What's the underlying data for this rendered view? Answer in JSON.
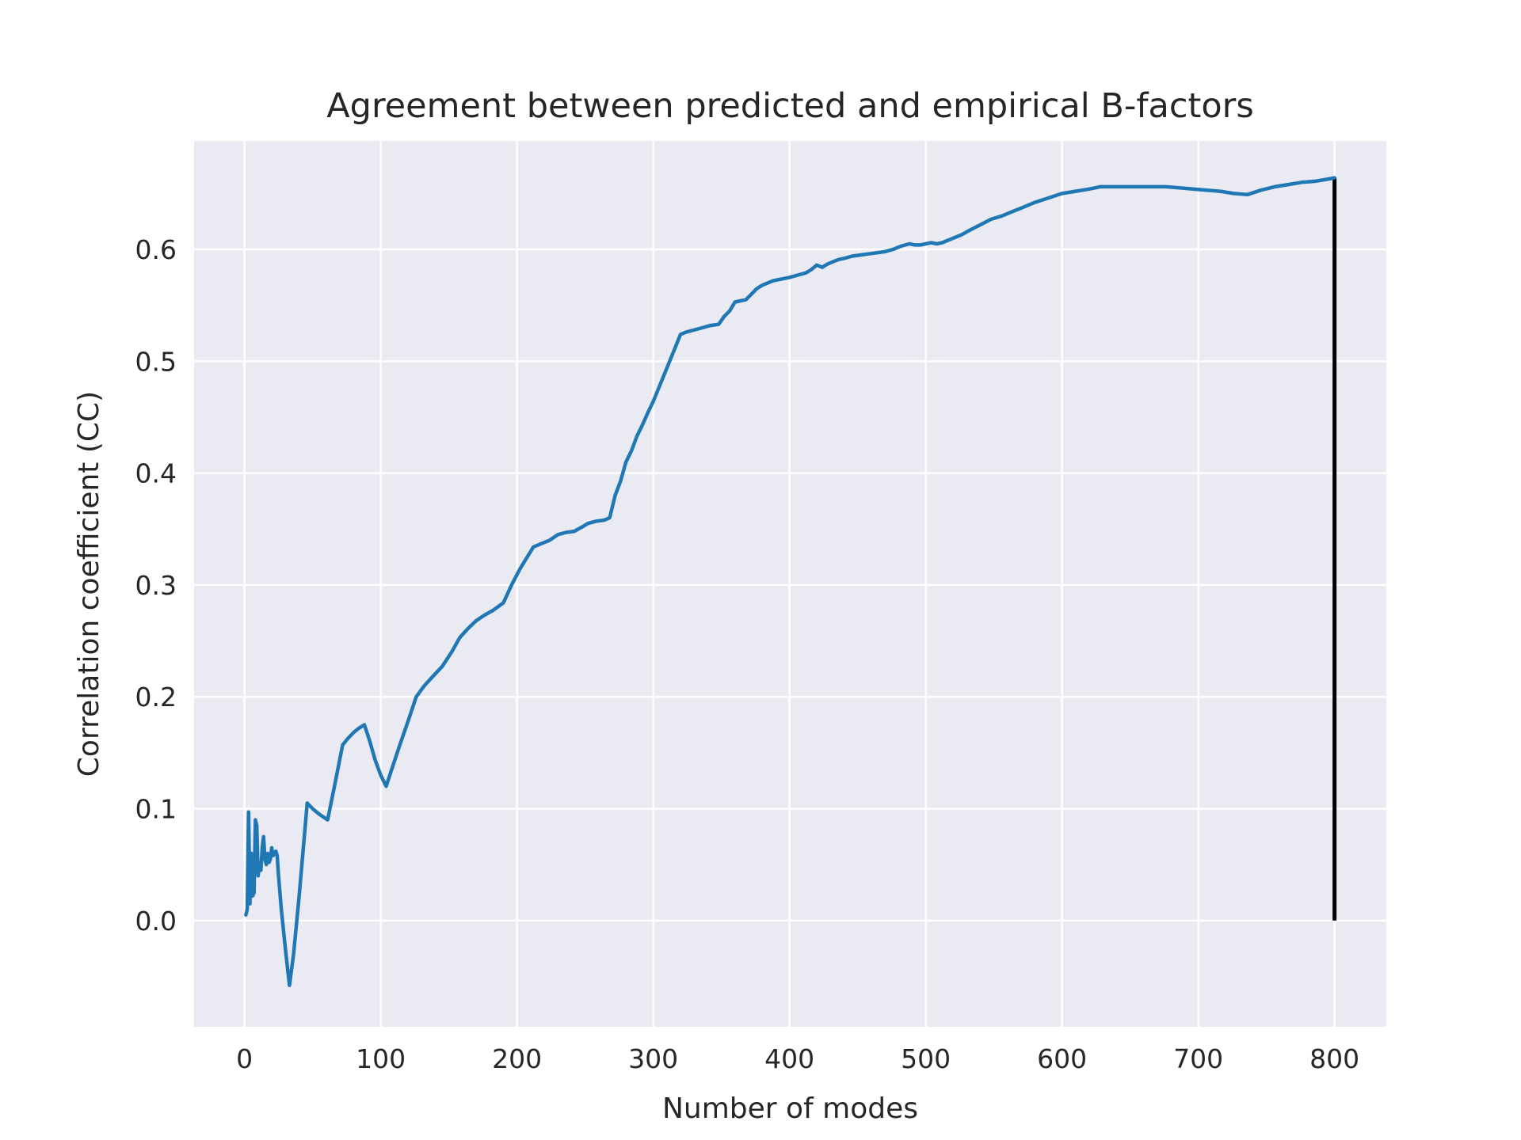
{
  "chart_data": {
    "type": "line",
    "title": "Agreement between predicted and empirical B-factors",
    "xlabel": "Number of modes",
    "ylabel": "Correlation coefficient (CC)",
    "xlim": [
      -37,
      838
    ],
    "ylim": [
      -0.095,
      0.697
    ],
    "xticks": [
      0,
      100,
      200,
      300,
      400,
      500,
      600,
      700,
      800
    ],
    "xtick_labels": [
      "0",
      "100",
      "200",
      "300",
      "400",
      "500",
      "600",
      "700",
      "800"
    ],
    "yticks": [
      0.0,
      0.1,
      0.2,
      0.3,
      0.4,
      0.5,
      0.6
    ],
    "ytick_labels": [
      "0.0",
      "0.1",
      "0.2",
      "0.3",
      "0.4",
      "0.5",
      "0.6"
    ],
    "grid": true,
    "colors": {
      "background": "#eaeaf2",
      "series": "#1f77b4",
      "marker": "#000000",
      "grid": "#ffffff"
    },
    "series": [
      {
        "x": [
          1,
          2,
          3,
          4,
          5,
          6,
          7,
          8,
          9,
          10,
          11,
          12,
          13,
          14,
          15,
          16,
          17,
          18,
          19,
          20,
          21,
          22,
          23,
          24,
          25,
          27,
          30,
          33,
          36,
          40,
          46,
          50,
          55,
          61,
          66,
          72,
          76,
          80,
          84,
          88,
          92,
          96,
          100,
          104,
          108,
          114,
          120,
          126,
          132,
          138,
          145,
          152,
          158,
          164,
          170,
          176,
          182,
          190,
          196,
          202,
          208,
          212,
          218,
          224,
          230,
          236,
          242,
          248,
          252,
          258,
          264,
          268,
          272,
          276,
          280,
          284,
          288,
          292,
          296,
          300,
          304,
          308,
          312,
          316,
          320,
          324,
          330,
          336,
          342,
          348,
          352,
          356,
          360,
          364,
          368,
          372,
          376,
          380,
          384,
          388,
          392,
          396,
          400,
          406,
          412,
          416,
          420,
          424,
          428,
          432,
          436,
          440,
          446,
          452,
          458,
          464,
          470,
          476,
          482,
          488,
          492,
          496,
          500,
          504,
          508,
          512,
          516,
          520,
          526,
          532,
          540,
          548,
          556,
          564,
          572,
          580,
          590,
          600,
          610,
          620,
          628,
          636,
          646,
          656,
          666,
          676,
          686,
          696,
          706,
          716,
          726,
          736,
          746,
          756,
          766,
          776,
          786,
          796,
          800
        ],
        "y": [
          0.005,
          0.01,
          0.097,
          0.015,
          0.06,
          0.022,
          0.025,
          0.09,
          0.085,
          0.04,
          0.05,
          0.045,
          0.065,
          0.075,
          0.055,
          0.05,
          0.06,
          0.052,
          0.055,
          0.065,
          0.058,
          0.06,
          0.062,
          0.058,
          0.04,
          0.01,
          -0.025,
          -0.058,
          -0.03,
          0.02,
          0.105,
          0.1,
          0.095,
          0.09,
          0.12,
          0.157,
          0.163,
          0.168,
          0.172,
          0.175,
          0.16,
          0.143,
          0.13,
          0.12,
          0.135,
          0.157,
          0.178,
          0.2,
          0.21,
          0.218,
          0.227,
          0.24,
          0.253,
          0.261,
          0.268,
          0.273,
          0.277,
          0.284,
          0.3,
          0.314,
          0.326,
          0.334,
          0.337,
          0.34,
          0.345,
          0.347,
          0.348,
          0.352,
          0.355,
          0.357,
          0.358,
          0.36,
          0.38,
          0.393,
          0.41,
          0.42,
          0.433,
          0.443,
          0.454,
          0.464,
          0.476,
          0.488,
          0.5,
          0.512,
          0.524,
          0.526,
          0.528,
          0.53,
          0.532,
          0.533,
          0.54,
          0.545,
          0.553,
          0.554,
          0.555,
          0.56,
          0.565,
          0.568,
          0.57,
          0.572,
          0.573,
          0.574,
          0.575,
          0.577,
          0.579,
          0.582,
          0.586,
          0.584,
          0.587,
          0.589,
          0.591,
          0.592,
          0.594,
          0.595,
          0.596,
          0.597,
          0.598,
          0.6,
          0.603,
          0.605,
          0.604,
          0.604,
          0.605,
          0.606,
          0.605,
          0.606,
          0.608,
          0.61,
          0.613,
          0.617,
          0.622,
          0.627,
          0.63,
          0.634,
          0.638,
          0.642,
          0.646,
          0.65,
          0.652,
          0.654,
          0.656,
          0.656,
          0.656,
          0.656,
          0.656,
          0.656,
          0.655,
          0.654,
          0.653,
          0.652,
          0.65,
          0.649,
          0.653,
          0.656,
          0.658,
          0.66,
          0.661,
          0.663,
          0.664
        ]
      }
    ],
    "vertical_marker": {
      "x": 800,
      "y_from": 0.0,
      "y_to": 0.664
    }
  }
}
